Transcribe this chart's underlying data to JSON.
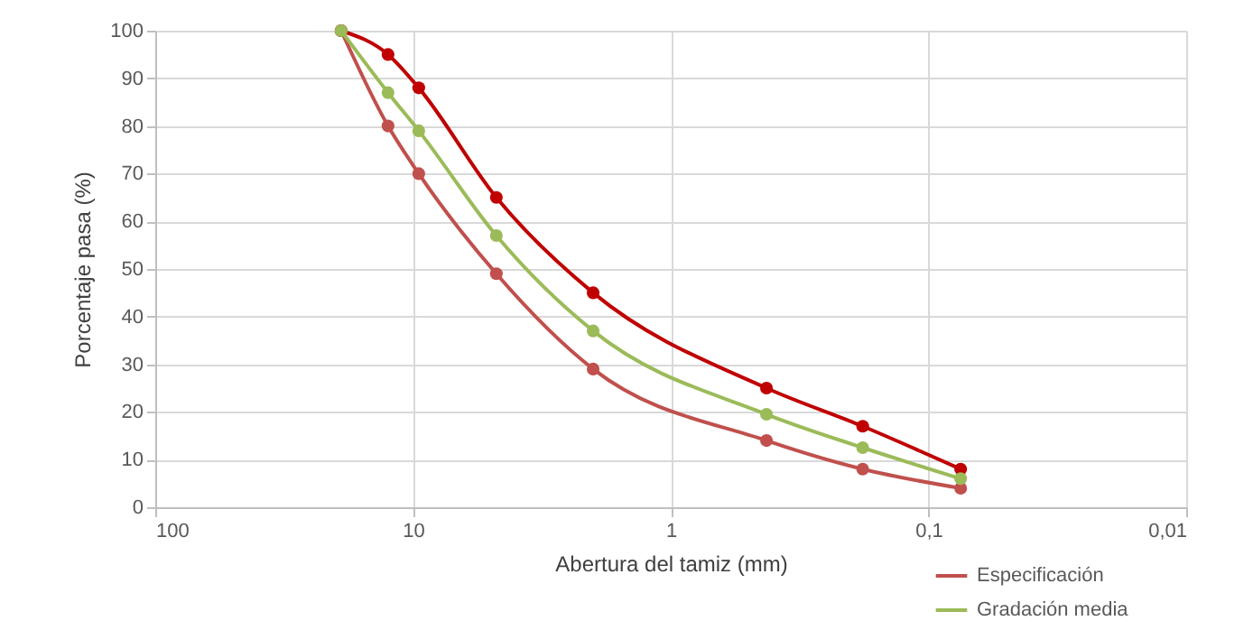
{
  "chart_data": {
    "type": "line",
    "xlabel": "Abertura del tamiz (mm)",
    "ylabel": "Porcentaje pasa (%)",
    "x": [
      19,
      12.5,
      9.5,
      4.75,
      2,
      0.425,
      0.18,
      0.075
    ],
    "series": [
      {
        "name": "Especificación",
        "color": "#c0504d",
        "values": [
          100,
          80,
          70,
          49,
          29,
          14,
          8,
          4
        ]
      },
      {
        "color": "#c00000",
        "values": [
          100,
          95,
          88,
          65,
          45,
          25,
          17,
          8
        ]
      },
      {
        "name": "Gradación media",
        "color": "#9bbb59",
        "values": [
          100,
          87,
          79,
          57,
          37,
          19.5,
          12.5,
          6
        ]
      }
    ],
    "log": "x",
    "xlim": [
      100,
      0.01
    ],
    "xticks": [
      100,
      10,
      1,
      {
        "value": 0.1,
        "label": "0,1"
      },
      {
        "value": 0.01,
        "label": "0,01"
      }
    ],
    "ylim": [
      0,
      100
    ],
    "yticks": [
      0,
      10,
      20,
      30,
      40,
      50,
      60,
      70,
      80,
      90,
      100
    ],
    "grid": true,
    "legend": "bottom right",
    "marker": "circle",
    "line_style": "solid"
  }
}
